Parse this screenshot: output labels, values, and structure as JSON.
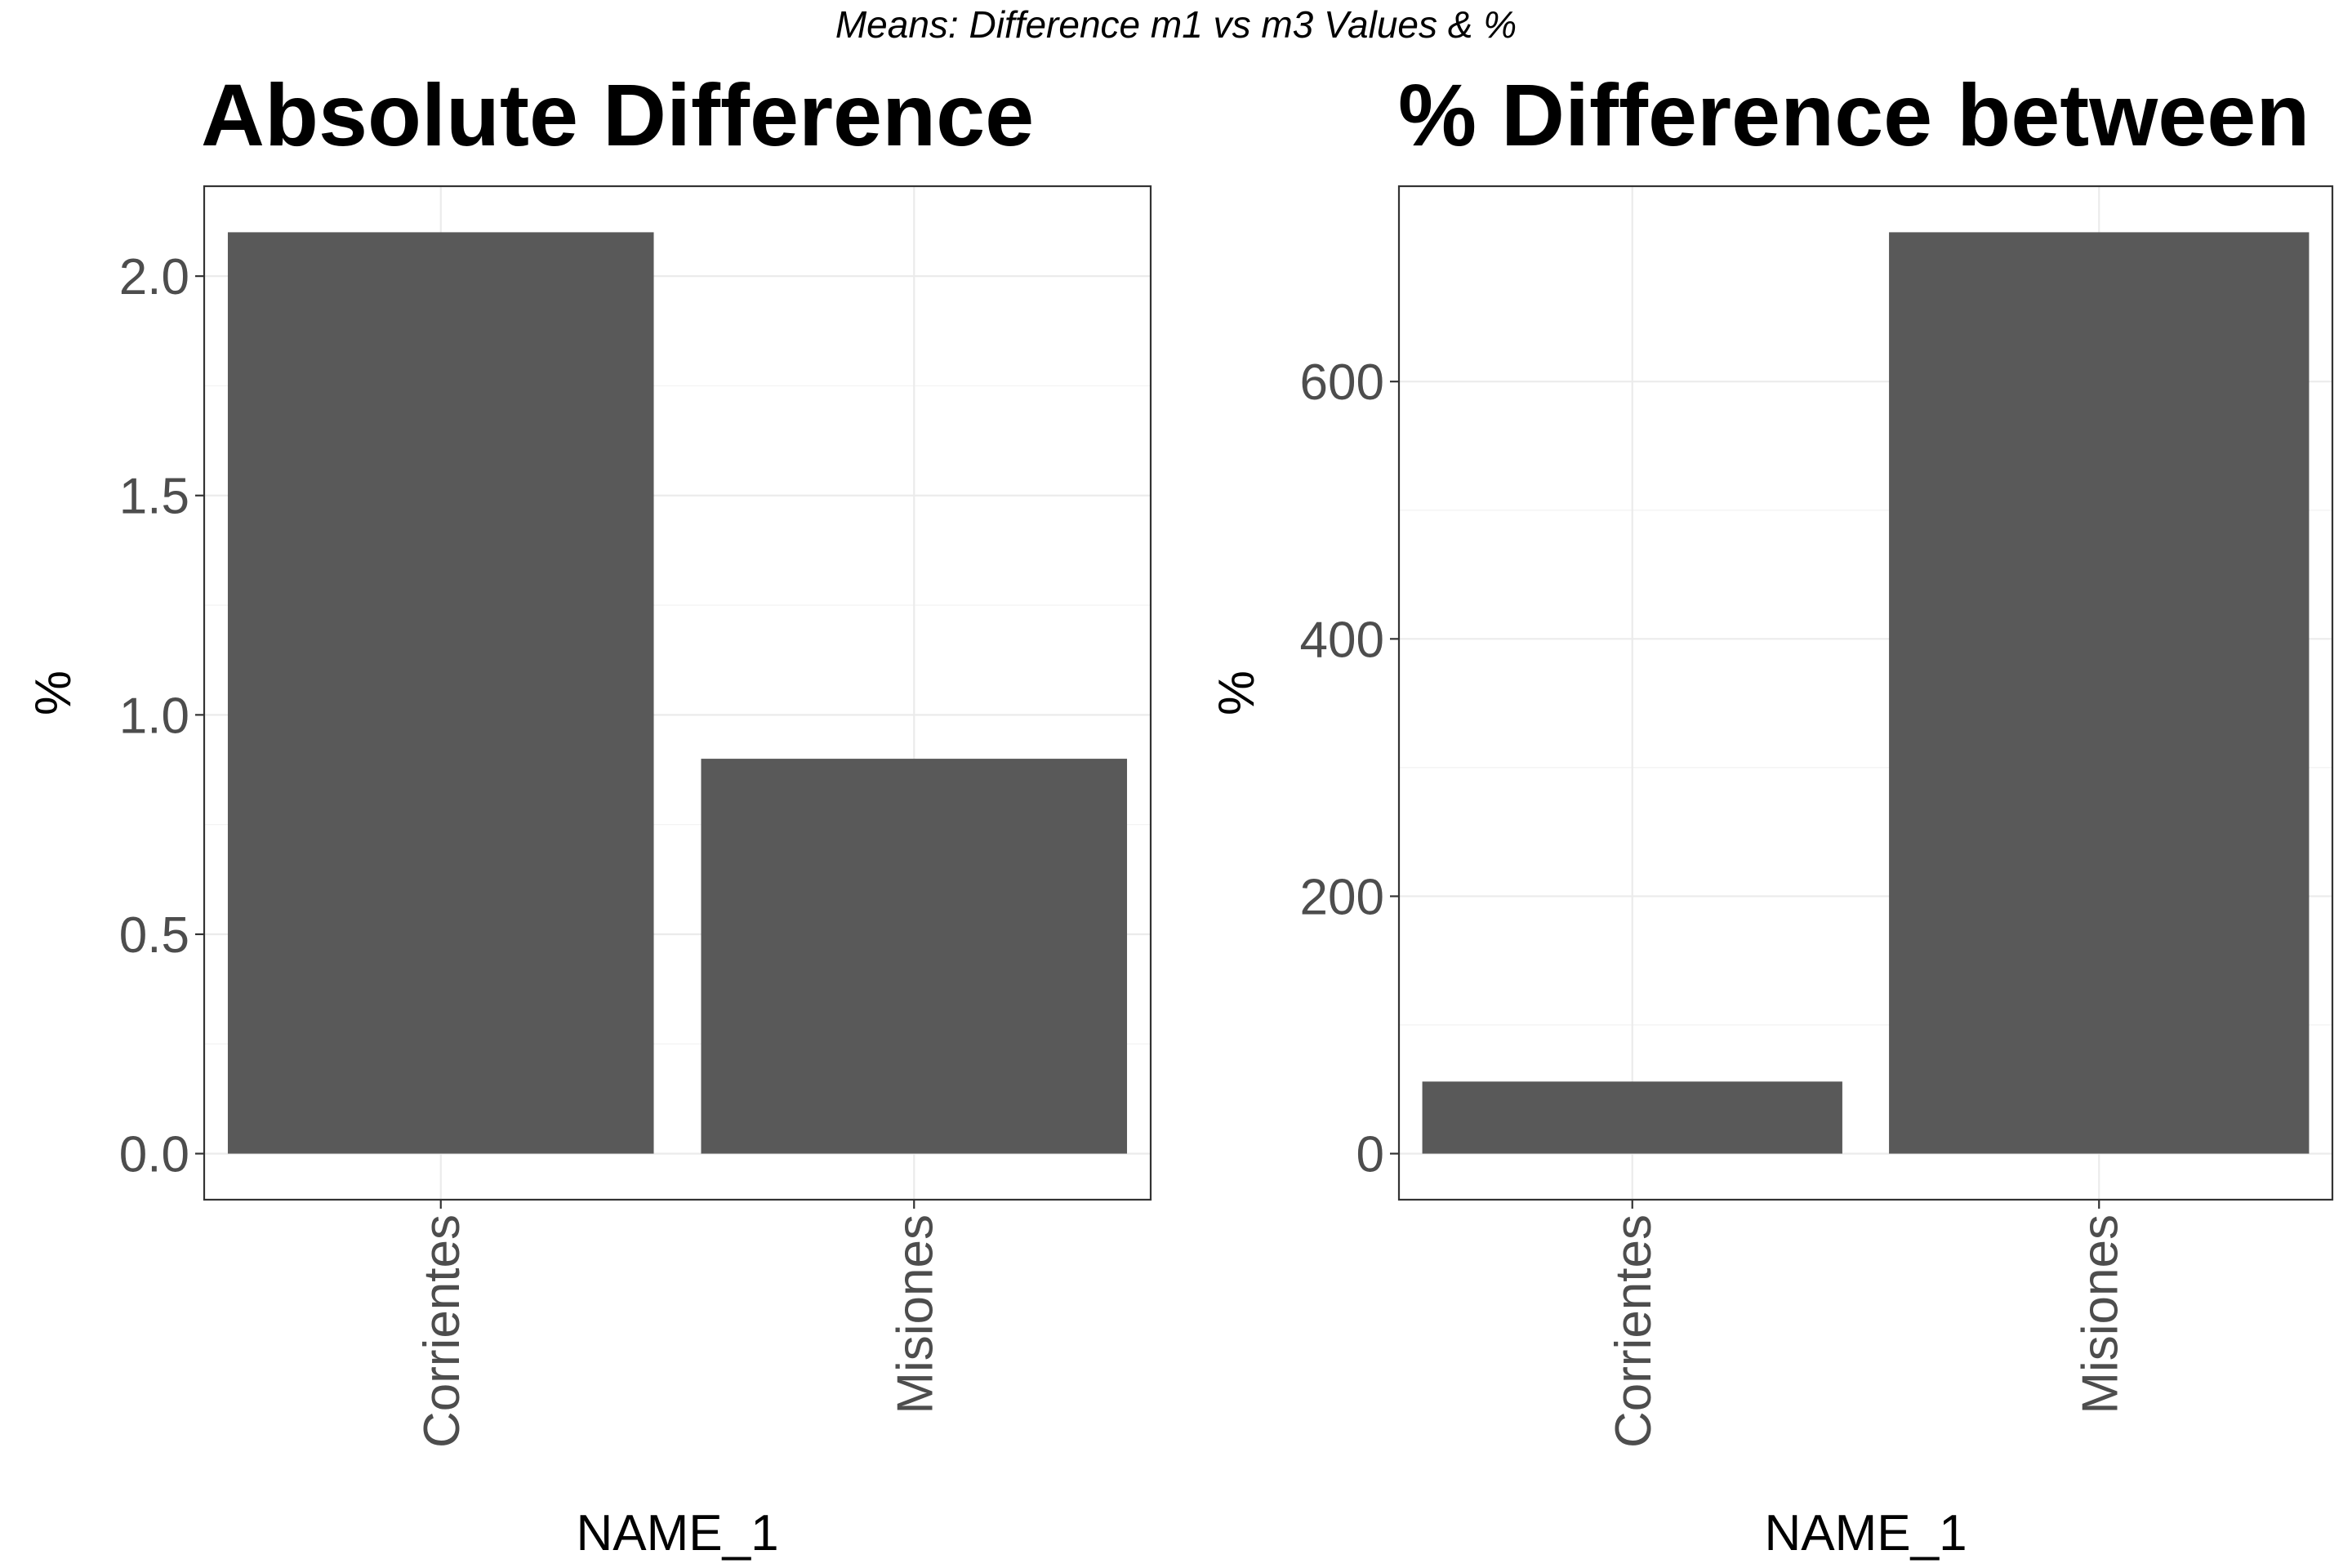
{
  "figure": {
    "suptitle": "Means: Difference m1 vs m3 Values & %"
  },
  "chart_data": [
    {
      "type": "bar",
      "title": "Absolute Difference",
      "xlabel": "NAME_1",
      "ylabel": "%",
      "categories": [
        "Corrientes",
        "Misiones"
      ],
      "values": [
        2.1,
        0.9
      ],
      "ylim": [
        -0.105,
        2.205
      ],
      "yticks": [
        0.0,
        0.5,
        1.0,
        1.5,
        2.0
      ],
      "ytick_labels": [
        "0.0",
        "0.5",
        "1.0",
        "1.5",
        "2.0"
      ],
      "bar_color": "#595959",
      "grid": true
    },
    {
      "type": "bar",
      "title": "% Difference between",
      "xlabel": "NAME_1",
      "ylabel": "%",
      "categories": [
        "Corrientes",
        "Misiones"
      ],
      "values": [
        56,
        716
      ],
      "ylim": [
        -35.8,
        751.8
      ],
      "yticks": [
        0,
        200,
        400,
        600
      ],
      "ytick_labels": [
        "0",
        "200",
        "400",
        "600"
      ],
      "bar_color": "#595959",
      "grid": true
    }
  ]
}
